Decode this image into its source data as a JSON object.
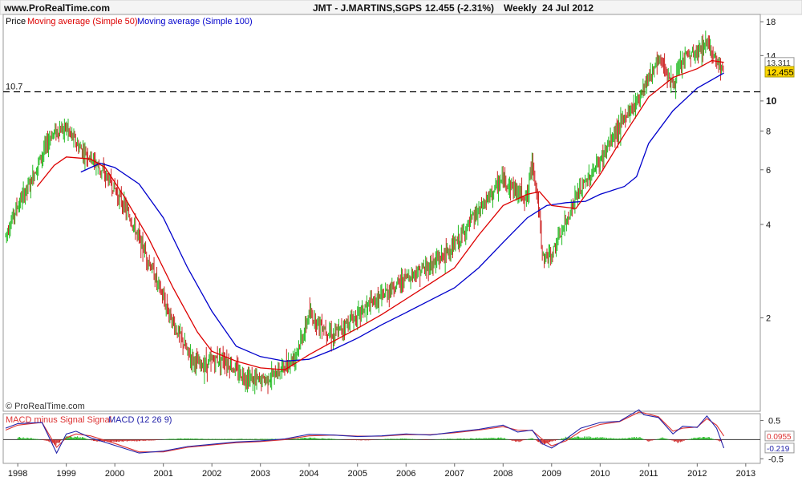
{
  "header": {
    "site": "www.ProRealTime.com",
    "instrument": "JMT - J.MARTINS,SGPS",
    "quote": "12.455 (-2.31%)",
    "period": "Weekly",
    "date": "24 Jul 2012"
  },
  "watermark": "© ProRealTime.com",
  "colors": {
    "up": "#22bb22",
    "down": "#cc2222",
    "sma50": "#dd0000",
    "sma100": "#0000cc",
    "macd_line": "#2222aa",
    "signal_line": "#dd3333",
    "hist_up": "#22bb22",
    "hist_down": "#cc2222",
    "last_price_badge": "#ffd700",
    "sma50_badge": "#ffffff"
  },
  "chart_data": [
    {
      "type": "line",
      "panel": "price",
      "scale": "log",
      "legend": [
        {
          "label": "Price"
        },
        {
          "label": "Moving average (Simple 50)"
        },
        {
          "label": "Moving average (Simple 100)"
        }
      ],
      "x_ticks": [
        "1998",
        "1999",
        "2000",
        "2001",
        "2002",
        "2003",
        "2004",
        "2005",
        "2006",
        "2007",
        "2008",
        "2009",
        "2010",
        "2011",
        "2012",
        "2013"
      ],
      "y_ticks": [
        {
          "value": 2,
          "label": "2"
        },
        {
          "value": 4,
          "label": "4"
        },
        {
          "value": 6,
          "label": "6"
        },
        {
          "value": 8,
          "label": "8"
        },
        {
          "value": 10,
          "label": "10"
        },
        {
          "value": 14,
          "label": "14"
        },
        {
          "value": 18,
          "label": "18"
        }
      ],
      "ylim": [
        1.0,
        19.0
      ],
      "xlim": [
        1997.7,
        2013.3
      ],
      "reference_line": {
        "value": 10.7,
        "label": "10.7"
      },
      "last_price": {
        "value": 12.455,
        "label": "12.455"
      },
      "sma50_last": {
        "value": 13.311,
        "label": "13.311"
      },
      "price": {
        "x": [
          1997.75,
          1998.0,
          1998.25,
          1998.5,
          1998.7,
          1998.8,
          1999.0,
          1999.25,
          1999.5,
          1999.75,
          2000.0,
          2000.25,
          2000.5,
          2000.75,
          2001.0,
          2001.25,
          2001.5,
          2001.75,
          2002.0,
          2002.2,
          2002.5,
          2002.75,
          2003.0,
          2003.25,
          2003.5,
          2003.7,
          2003.9,
          2004.0,
          2004.5,
          2005.0,
          2005.5,
          2006.0,
          2006.5,
          2007.0,
          2007.5,
          2007.75,
          2008.0,
          2008.3,
          2008.5,
          2008.6,
          2008.75,
          2008.8,
          2009.0,
          2009.25,
          2009.5,
          2009.75,
          2010.0,
          2010.25,
          2010.5,
          2010.75,
          2011.0,
          2011.25,
          2011.5,
          2011.75,
          2012.0,
          2012.2,
          2012.4,
          2012.55
        ],
        "y": [
          3.7,
          4.6,
          5.4,
          6.7,
          7.8,
          8.0,
          8.2,
          7.1,
          6.6,
          5.9,
          5.2,
          4.4,
          3.6,
          2.9,
          2.3,
          1.85,
          1.55,
          1.4,
          1.45,
          1.5,
          1.35,
          1.28,
          1.25,
          1.3,
          1.4,
          1.5,
          1.8,
          2.05,
          1.75,
          2.05,
          2.35,
          2.7,
          2.95,
          3.4,
          4.4,
          5.0,
          5.6,
          5.1,
          4.9,
          6.5,
          4.2,
          3.1,
          3.2,
          3.9,
          4.9,
          5.6,
          6.4,
          7.6,
          8.8,
          10.0,
          12.0,
          13.6,
          11.2,
          13.9,
          14.2,
          15.6,
          13.5,
          12.455
        ]
      },
      "sma50": {
        "x": [
          1998.4,
          1998.75,
          1999.0,
          1999.5,
          1999.8,
          2000.2,
          2000.7,
          2001.2,
          2001.7,
          2002.0,
          2002.5,
          2003.0,
          2003.5,
          2004.0,
          2004.5,
          2005.0,
          2005.5,
          2006.0,
          2006.5,
          2007.0,
          2007.5,
          2008.0,
          2008.5,
          2008.75,
          2009.0,
          2009.5,
          2010.0,
          2010.5,
          2011.0,
          2011.5,
          2012.0,
          2012.3,
          2012.55
        ],
        "y": [
          5.3,
          6.2,
          6.6,
          6.5,
          6.1,
          4.9,
          3.6,
          2.5,
          1.8,
          1.56,
          1.45,
          1.38,
          1.36,
          1.52,
          1.68,
          1.85,
          2.05,
          2.3,
          2.58,
          2.9,
          3.7,
          4.6,
          5.0,
          5.1,
          4.6,
          4.5,
          5.8,
          7.8,
          10.3,
          11.9,
          12.7,
          13.5,
          13.311
        ]
      },
      "sma100": {
        "x": [
          1999.3,
          1999.7,
          2000.0,
          2000.5,
          2001.0,
          2001.5,
          2002.0,
          2002.5,
          2003.0,
          2003.5,
          2004.0,
          2004.5,
          2005.0,
          2005.5,
          2006.0,
          2006.5,
          2007.0,
          2007.5,
          2008.0,
          2008.5,
          2008.9,
          2009.3,
          2009.7,
          2010.0,
          2010.5,
          2010.75,
          2011.0,
          2011.5,
          2012.0,
          2012.55
        ],
        "y": [
          5.9,
          6.3,
          6.1,
          5.4,
          4.2,
          2.9,
          2.1,
          1.62,
          1.5,
          1.45,
          1.47,
          1.58,
          1.72,
          1.9,
          2.08,
          2.28,
          2.5,
          2.9,
          3.5,
          4.2,
          4.6,
          4.7,
          4.75,
          5.0,
          5.3,
          5.7,
          7.3,
          9.3,
          11.0,
          12.3
        ]
      }
    },
    {
      "type": "line",
      "panel": "macd",
      "legend": [
        {
          "label": "MACD minus Signal Signal"
        },
        {
          "label": "MACD (12 26 9)"
        }
      ],
      "y_ticks": [
        {
          "value": 0.5,
          "label": "0.5"
        },
        {
          "value": -0.5,
          "label": "-0.5"
        }
      ],
      "ylim": [
        -0.62,
        0.68
      ],
      "last_values": [
        {
          "value": 0.0955,
          "label": "0.0955"
        },
        {
          "value": -0.219,
          "label": "-0.219"
        }
      ],
      "macd": {
        "x": [
          1997.75,
          1998.0,
          1998.5,
          1998.8,
          1999.0,
          1999.2,
          1999.5,
          2000.0,
          2000.5,
          2001.0,
          2001.5,
          2002.0,
          2002.5,
          2003.0,
          2003.5,
          2004.0,
          2004.5,
          2005.0,
          2005.5,
          2006.0,
          2006.5,
          2007.0,
          2007.5,
          2008.0,
          2008.3,
          2008.6,
          2008.8,
          2009.0,
          2009.3,
          2009.6,
          2010.0,
          2010.4,
          2010.8,
          2010.9,
          2011.2,
          2011.5,
          2011.7,
          2012.0,
          2012.2,
          2012.4,
          2012.55
        ],
        "y": [
          0.3,
          0.42,
          0.45,
          -0.35,
          0.15,
          0.22,
          0.05,
          -0.15,
          -0.35,
          -0.3,
          -0.18,
          -0.12,
          -0.06,
          -0.03,
          0.02,
          0.14,
          0.12,
          0.08,
          0.1,
          0.15,
          0.12,
          0.2,
          0.27,
          0.38,
          0.2,
          0.25,
          -0.1,
          -0.22,
          0.02,
          0.3,
          0.45,
          0.48,
          0.78,
          0.65,
          0.58,
          0.15,
          0.35,
          0.32,
          0.62,
          0.3,
          -0.219
        ]
      },
      "signal": {
        "x": [
          1997.75,
          1998.0,
          1998.5,
          1998.8,
          1999.0,
          1999.2,
          1999.5,
          2000.0,
          2000.5,
          2001.0,
          2001.5,
          2002.0,
          2002.5,
          2003.0,
          2003.5,
          2004.0,
          2004.5,
          2005.0,
          2005.5,
          2006.0,
          2006.5,
          2007.0,
          2007.5,
          2008.0,
          2008.3,
          2008.6,
          2008.8,
          2009.0,
          2009.3,
          2009.6,
          2010.0,
          2010.4,
          2010.8,
          2010.9,
          2011.2,
          2011.5,
          2011.7,
          2012.0,
          2012.2,
          2012.4,
          2012.55
        ],
        "y": [
          0.25,
          0.38,
          0.45,
          -0.2,
          0.05,
          0.15,
          0.1,
          -0.1,
          -0.32,
          -0.32,
          -0.2,
          -0.14,
          -0.08,
          -0.05,
          0.0,
          0.1,
          0.12,
          0.09,
          0.09,
          0.13,
          0.13,
          0.18,
          0.25,
          0.34,
          0.25,
          0.24,
          0.02,
          -0.16,
          -0.03,
          0.22,
          0.4,
          0.47,
          0.72,
          0.7,
          0.6,
          0.22,
          0.3,
          0.33,
          0.55,
          0.38,
          0.0955
        ]
      },
      "histogram": {
        "x": [
          1998.0,
          1998.3,
          1998.6,
          1998.8,
          1999.0,
          1999.3,
          1999.6,
          2000.0,
          2000.4,
          2000.8,
          2001.2,
          2001.6,
          2002.0,
          2002.4,
          2002.8,
          2003.2,
          2003.6,
          2004.0,
          2004.4,
          2004.8,
          2005.2,
          2005.6,
          2006.0,
          2006.4,
          2006.8,
          2007.2,
          2007.6,
          2008.0,
          2008.3,
          2008.6,
          2008.8,
          2009.0,
          2009.3,
          2009.6,
          2010.0,
          2010.4,
          2010.8,
          2011.0,
          2011.3,
          2011.6,
          2011.9,
          2012.2,
          2012.5
        ],
        "y": [
          0.06,
          0.04,
          -0.03,
          -0.14,
          0.1,
          0.07,
          -0.05,
          -0.05,
          -0.04,
          -0.02,
          0.03,
          0.03,
          0.02,
          0.02,
          0.02,
          0.02,
          0.02,
          0.05,
          0.03,
          -0.01,
          -0.02,
          0.02,
          0.03,
          -0.01,
          0.02,
          0.03,
          0.04,
          0.05,
          -0.07,
          0.05,
          -0.12,
          -0.06,
          0.07,
          0.08,
          0.06,
          0.03,
          0.07,
          -0.05,
          0.06,
          -0.08,
          0.04,
          0.08,
          -0.06
        ]
      }
    }
  ]
}
